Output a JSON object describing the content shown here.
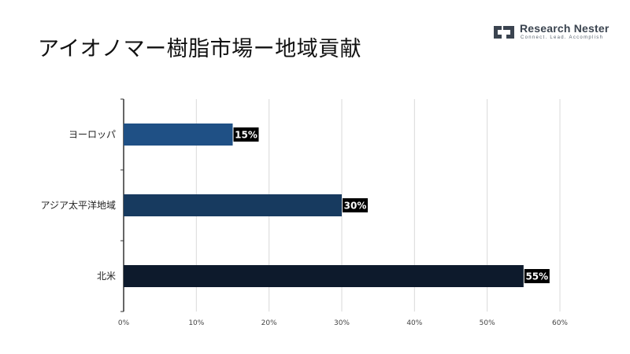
{
  "header": {
    "title": "アイオノマー樹脂市場ー地域貢献"
  },
  "brand": {
    "name": "Research Nester",
    "tagline": "Connect. Lead. Accomplish"
  },
  "chart_data": {
    "type": "bar",
    "orientation": "horizontal",
    "title": "アイオノマー樹脂市場ー地域貢献",
    "categories": [
      "ヨーロッパ",
      "アジア太平洋地域",
      "北米"
    ],
    "values": [
      15,
      30,
      55
    ],
    "data_labels": [
      "15%",
      "30%",
      "55%"
    ],
    "bar_colors": [
      "#1f5085",
      "#173a5f",
      "#0d1a2c"
    ],
    "xlim": [
      0,
      60
    ],
    "xticks": [
      0,
      10,
      20,
      30,
      40,
      50,
      60
    ],
    "xtick_labels": [
      "0%",
      "10%",
      "20%",
      "30%",
      "40%",
      "50%",
      "60%"
    ],
    "xlabel": "",
    "ylabel": "",
    "grid": true,
    "legend": "none"
  }
}
